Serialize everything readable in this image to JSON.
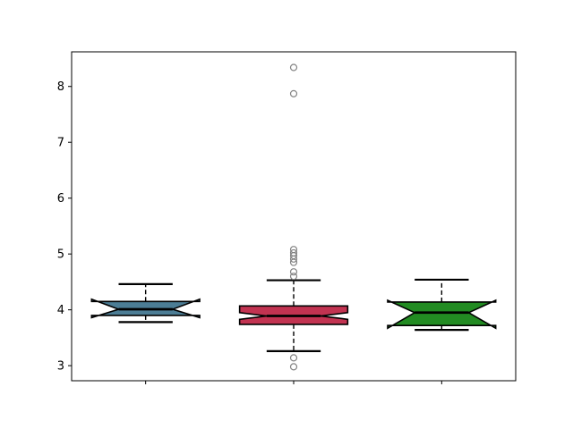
{
  "figure": {
    "background": "#ffffff",
    "title": ""
  },
  "chart_data": {
    "type": "boxplot",
    "notched": true,
    "title": "",
    "xlabel": "",
    "ylabel": "",
    "xlim": [
      0.5,
      3.5
    ],
    "ylim": [
      2.73,
      8.62
    ],
    "yticks": [
      3,
      4,
      5,
      6,
      7,
      8
    ],
    "xticks": [
      1,
      2,
      3
    ],
    "xtick_labels": [
      "",
      "",
      ""
    ],
    "grid": false,
    "legend": null,
    "box_width_units": 0.73,
    "style": {
      "line_color": "#000000",
      "flier_color": "#848484",
      "whisker_dashed": true
    },
    "groups": [
      {
        "position": 1,
        "color": "#4c7d95",
        "whisker_lo": 3.78,
        "q1": 3.9,
        "median": 4.01,
        "q3": 4.15,
        "whisker_hi": 4.46,
        "notch_lo": 3.86,
        "notch_hi": 4.19,
        "fliers": []
      },
      {
        "position": 2,
        "color": "#c23351",
        "whisker_lo": 3.26,
        "q1": 3.74,
        "median": 3.89,
        "q3": 4.07,
        "notch_lo": 3.83,
        "notch_hi": 3.95,
        "whisker_hi": 4.53,
        "fliers": [
          8.34,
          7.87,
          5.08,
          5.02,
          4.97,
          4.91,
          4.85,
          4.68,
          4.6,
          3.14,
          2.98
        ]
      },
      {
        "position": 3,
        "color": "#228b22",
        "whisker_lo": 3.64,
        "q1": 3.72,
        "median": 3.95,
        "q3": 4.14,
        "whisker_hi": 4.54,
        "notch_lo": 3.67,
        "notch_hi": 4.17,
        "fliers": []
      }
    ]
  }
}
